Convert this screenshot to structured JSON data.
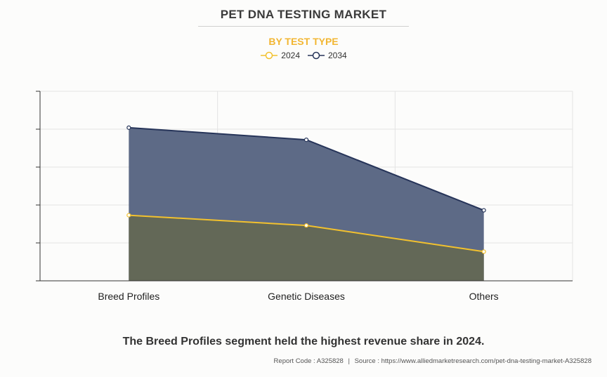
{
  "header": {
    "title": "PET DNA TESTING MARKET",
    "subtitle": "BY TEST TYPE"
  },
  "colors": {
    "series_2024": "#f2c12e",
    "series_2034": "#263459",
    "fill_2034": "#5d6a86",
    "fill_2024": "#636857",
    "title_accent": "#f2b632"
  },
  "chart_data": {
    "type": "area",
    "categories": [
      "Breed Profiles",
      "Genetic Diseases",
      "Others"
    ],
    "series": [
      {
        "name": "2024",
        "values": [
          1.73,
          1.46,
          0.77
        ]
      },
      {
        "name": "2034",
        "values": [
          4.04,
          3.72,
          1.86
        ]
      }
    ],
    "ylim": [
      0,
      5
    ],
    "y_tick_labels_shown": false,
    "grid": true,
    "legend": "top-center"
  },
  "footer": {
    "headline": "The Breed Profiles segment held the highest revenue share in 2024.",
    "report_code": "Report Code : A325828",
    "separator": "|",
    "source": "Source : https://www.alliedmarketresearch.com/pet-dna-testing-market-A325828"
  }
}
